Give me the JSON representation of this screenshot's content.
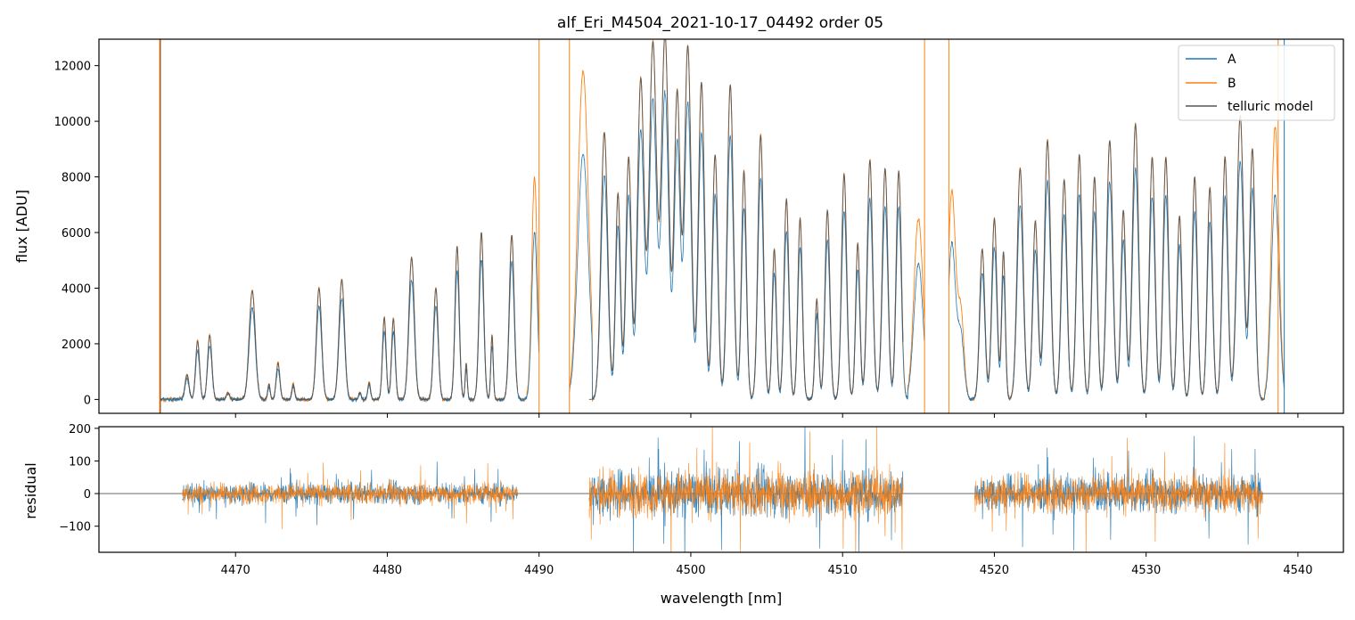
{
  "chart_data": [
    {
      "type": "line",
      "panel": "top",
      "title": "alf_Eri_M4504_2021-10-17_04492  order 05",
      "xlabel": "",
      "ylabel": "flux [ADU]",
      "xlim": [
        4461,
        4543
      ],
      "ylim": [
        -500,
        12950
      ],
      "yticks": [
        0,
        2000,
        4000,
        6000,
        8000,
        10000,
        12000
      ],
      "xticks": [
        4470,
        4480,
        4490,
        4500,
        4510,
        4520,
        4530,
        4540
      ],
      "legend": {
        "position": "top-right",
        "entries": [
          "A",
          "B",
          "telluric model"
        ]
      },
      "series": [
        {
          "name": "A",
          "color": "#1f77b4"
        },
        {
          "name": "B",
          "color": "#ff7f0e"
        },
        {
          "name": "telluric model",
          "color": "#555555"
        }
      ],
      "segments": [
        {
          "range": [
            4466.5,
            4488.6
          ]
        },
        {
          "range": [
            4493.3,
            4514.0
          ]
        },
        {
          "range": [
            4518.7,
            4537.7
          ]
        }
      ],
      "absorption_lines": [
        [
          4466.8,
          900,
          0.13
        ],
        [
          4467.5,
          2100,
          0.13
        ],
        [
          4468.3,
          2300,
          0.14
        ],
        [
          4469.5,
          250,
          0.1
        ],
        [
          4471.1,
          3900,
          0.2
        ],
        [
          4472.2,
          550,
          0.08
        ],
        [
          4472.8,
          1300,
          0.12
        ],
        [
          4473.8,
          550,
          0.09
        ],
        [
          4475.5,
          4000,
          0.17
        ],
        [
          4477.0,
          4300,
          0.18
        ],
        [
          4478.2,
          250,
          0.08
        ],
        [
          4478.8,
          600,
          0.09
        ],
        [
          4479.8,
          2950,
          0.12
        ],
        [
          4480.4,
          2900,
          0.12
        ],
        [
          4481.6,
          5100,
          0.18
        ],
        [
          4483.2,
          4000,
          0.15
        ],
        [
          4484.6,
          5500,
          0.14
        ],
        [
          4485.2,
          1300,
          0.07
        ],
        [
          4486.2,
          6000,
          0.15
        ],
        [
          4486.9,
          2300,
          0.08
        ],
        [
          4488.2,
          5900,
          0.16
        ],
        [
          4494.3,
          9600,
          0.22
        ],
        [
          4495.2,
          7400,
          0.16
        ],
        [
          4495.9,
          8700,
          0.18
        ],
        [
          4496.7,
          11500,
          0.22
        ],
        [
          4497.5,
          12800,
          0.24
        ],
        [
          4498.3,
          13100,
          0.24
        ],
        [
          4499.1,
          11000,
          0.2
        ],
        [
          4499.8,
          12700,
          0.22
        ],
        [
          4500.7,
          11400,
          0.2
        ],
        [
          4501.6,
          8800,
          0.18
        ],
        [
          4502.6,
          11300,
          0.2
        ],
        [
          4503.5,
          8200,
          0.16
        ],
        [
          4504.6,
          9500,
          0.18
        ],
        [
          4505.5,
          5400,
          0.14
        ],
        [
          4506.3,
          7200,
          0.16
        ],
        [
          4507.2,
          6500,
          0.15
        ],
        [
          4508.3,
          3600,
          0.12
        ],
        [
          4509.0,
          6800,
          0.16
        ],
        [
          4510.1,
          8100,
          0.17
        ],
        [
          4511.0,
          5600,
          0.14
        ],
        [
          4511.8,
          8600,
          0.18
        ],
        [
          4512.8,
          8300,
          0.18
        ],
        [
          4513.7,
          8200,
          0.17
        ],
        [
          4519.2,
          5400,
          0.17
        ],
        [
          4520.0,
          6500,
          0.17
        ],
        [
          4520.6,
          5300,
          0.12
        ],
        [
          4521.7,
          8300,
          0.2
        ],
        [
          4522.7,
          6400,
          0.17
        ],
        [
          4523.5,
          9300,
          0.2
        ],
        [
          4524.6,
          7900,
          0.18
        ],
        [
          4525.6,
          8800,
          0.18
        ],
        [
          4526.6,
          8000,
          0.17
        ],
        [
          4527.6,
          9300,
          0.2
        ],
        [
          4528.5,
          6800,
          0.16
        ],
        [
          4529.3,
          9900,
          0.2
        ],
        [
          4530.4,
          8700,
          0.18
        ],
        [
          4531.3,
          8700,
          0.18
        ],
        [
          4532.2,
          6600,
          0.16
        ],
        [
          4533.2,
          8000,
          0.17
        ],
        [
          4534.2,
          7600,
          0.17
        ],
        [
          4535.2,
          8700,
          0.18
        ],
        [
          4536.2,
          10200,
          0.22
        ],
        [
          4537.0,
          9000,
          0.18
        ]
      ],
      "continuum_ends": [
        [
          4464.9,
          0
        ],
        [
          4465.0,
          12950
        ],
        [
          4488.9,
          1700
        ],
        [
          4490.0,
          12950
        ],
        [
          4492.0,
          12950
        ],
        [
          4514.5,
          7500
        ],
        [
          4517.0,
          7500
        ],
        [
          4538.7,
          10000
        ],
        [
          4539.1,
          3800
        ]
      ]
    },
    {
      "type": "line",
      "panel": "bottom",
      "title": "",
      "xlabel": "wavelength [nm]",
      "ylabel": "residual",
      "xlim": [
        4461,
        4543
      ],
      "ylim": [
        -180,
        205
      ],
      "yticks": [
        -100,
        0,
        100,
        200
      ],
      "ytick_labels": [
        "−100",
        "0",
        "100",
        "200"
      ],
      "xticks": [
        4470,
        4480,
        4490,
        4500,
        4510,
        4520,
        4530,
        4540
      ],
      "zero_line": true,
      "series": [
        {
          "name": "A",
          "color": "#1f77b4"
        },
        {
          "name": "B",
          "color": "#ff7f0e"
        }
      ],
      "segments": [
        {
          "range": [
            4466.5,
            4488.6
          ],
          "typical_amplitude": 50
        },
        {
          "range": [
            4493.3,
            4514.0
          ],
          "typical_amplitude": 110
        },
        {
          "range": [
            4518.7,
            4537.7
          ],
          "typical_amplitude": 90
        }
      ]
    }
  ]
}
